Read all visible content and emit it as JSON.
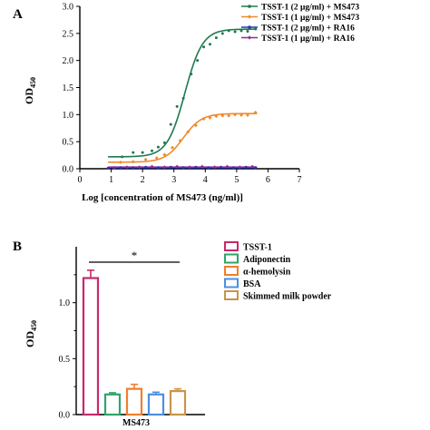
{
  "chart_data": [
    {
      "panel_label": "A",
      "type": "scatter",
      "xlabel": "Log [concentration of MS473 (ng/ml)]",
      "ylabel": "OD",
      "ylabel_sub": "450",
      "xlim": [
        0,
        7
      ],
      "ylim": [
        0,
        3.0
      ],
      "xticks": [
        "0",
        "1",
        "2",
        "3",
        "4",
        "5",
        "6",
        "7"
      ],
      "yticks": [
        "0.0",
        "0.5",
        "1.0",
        "1.5",
        "2.0",
        "2.5",
        "3.0"
      ],
      "series": [
        {
          "name": "TSST-1 (2 μg/ml) + MS473",
          "color": "#1e7a4e",
          "marker": "circle",
          "curve": {
            "bottom": 0.22,
            "top": 2.58,
            "ec50_log": 3.35,
            "hill": 1.55
          },
          "points": [
            {
              "x": 1.35,
              "y": 0.22
            },
            {
              "x": 1.7,
              "y": 0.3
            },
            {
              "x": 2.0,
              "y": 0.3
            },
            {
              "x": 2.3,
              "y": 0.33
            },
            {
              "x": 2.5,
              "y": 0.4
            },
            {
              "x": 2.7,
              "y": 0.48
            },
            {
              "x": 2.9,
              "y": 0.82
            },
            {
              "x": 3.1,
              "y": 1.15
            },
            {
              "x": 3.3,
              "y": 1.3
            },
            {
              "x": 3.55,
              "y": 1.75
            },
            {
              "x": 3.75,
              "y": 2.0
            },
            {
              "x": 3.95,
              "y": 2.25
            },
            {
              "x": 4.15,
              "y": 2.3
            },
            {
              "x": 4.35,
              "y": 2.42
            },
            {
              "x": 4.55,
              "y": 2.5
            },
            {
              "x": 4.75,
              "y": 2.55
            },
            {
              "x": 4.95,
              "y": 2.53
            },
            {
              "x": 5.15,
              "y": 2.55
            },
            {
              "x": 5.35,
              "y": 2.54
            },
            {
              "x": 5.6,
              "y": 2.58
            }
          ]
        },
        {
          "name": "TSST-1 (1 μg/ml) + MS473",
          "color": "#f08a2c",
          "marker": "diamond",
          "curve": {
            "bottom": 0.12,
            "top": 1.02,
            "ec50_log": 3.3,
            "hill": 1.5
          },
          "points": [
            {
              "x": 1.3,
              "y": 0.12
            },
            {
              "x": 1.7,
              "y": 0.13
            },
            {
              "x": 2.1,
              "y": 0.17
            },
            {
              "x": 2.45,
              "y": 0.2
            },
            {
              "x": 2.7,
              "y": 0.26
            },
            {
              "x": 2.95,
              "y": 0.39
            },
            {
              "x": 3.2,
              "y": 0.52
            },
            {
              "x": 3.45,
              "y": 0.68
            },
            {
              "x": 3.7,
              "y": 0.8
            },
            {
              "x": 3.95,
              "y": 0.92
            },
            {
              "x": 4.15,
              "y": 0.94
            },
            {
              "x": 4.35,
              "y": 0.97
            },
            {
              "x": 4.55,
              "y": 0.98
            },
            {
              "x": 4.75,
              "y": 0.98
            },
            {
              "x": 4.95,
              "y": 1.0
            },
            {
              "x": 5.15,
              "y": 0.99
            },
            {
              "x": 5.35,
              "y": 0.99
            },
            {
              "x": 5.6,
              "y": 1.04
            }
          ]
        },
        {
          "name": "TSST-1 (2 μg/ml) + RA16",
          "color": "#2c34b8",
          "marker": "circle",
          "curve": {
            "constant": 0.02
          },
          "points": [
            {
              "x": 0.9,
              "y": 0.01
            },
            {
              "x": 1.3,
              "y": 0.02
            },
            {
              "x": 1.7,
              "y": 0.02
            },
            {
              "x": 2.1,
              "y": 0.03
            },
            {
              "x": 2.5,
              "y": 0.02
            },
            {
              "x": 2.9,
              "y": 0.03
            },
            {
              "x": 3.3,
              "y": 0.02
            },
            {
              "x": 3.7,
              "y": 0.03
            },
            {
              "x": 4.1,
              "y": 0.02
            },
            {
              "x": 4.5,
              "y": 0.03
            },
            {
              "x": 4.9,
              "y": 0.02
            },
            {
              "x": 5.3,
              "y": 0.03
            },
            {
              "x": 5.6,
              "y": 0.02
            }
          ]
        },
        {
          "name": "TSST-1 (1 μg/ml) + RA16",
          "color": "#8e2c9c",
          "marker": "diamond",
          "curve": {
            "constant": 0.03
          },
          "points": [
            {
              "x": 1.1,
              "y": 0.02
            },
            {
              "x": 1.5,
              "y": 0.03
            },
            {
              "x": 1.9,
              "y": 0.03
            },
            {
              "x": 2.3,
              "y": 0.04
            },
            {
              "x": 2.7,
              "y": 0.03
            },
            {
              "x": 3.1,
              "y": 0.04
            },
            {
              "x": 3.5,
              "y": 0.03
            },
            {
              "x": 3.9,
              "y": 0.04
            },
            {
              "x": 4.3,
              "y": 0.03
            },
            {
              "x": 4.7,
              "y": 0.04
            },
            {
              "x": 5.1,
              "y": 0.03
            },
            {
              "x": 5.5,
              "y": 0.04
            }
          ]
        }
      ],
      "legend": "top-right",
      "grid": false
    },
    {
      "panel_label": "B",
      "type": "bar",
      "categories": [
        "TSST-1",
        "Adiponectin",
        "α-hemolysin",
        "BSA",
        "Skimmed milk powder"
      ],
      "values": [
        1.22,
        0.18,
        0.23,
        0.18,
        0.21
      ],
      "errors": [
        0.07,
        0.015,
        0.04,
        0.02,
        0.02
      ],
      "colors": [
        "#c8286c",
        "#2ea56a",
        "#f07e2c",
        "#4a90e2",
        "#c8954a"
      ],
      "xlabel": "MS473",
      "ylabel": "OD",
      "ylabel_sub": "450",
      "ylim": [
        0,
        1.5
      ],
      "yticks": [
        "0.0",
        "0.5",
        "1.0"
      ],
      "significance": "*",
      "legend": "top-right",
      "grid": false
    }
  ]
}
